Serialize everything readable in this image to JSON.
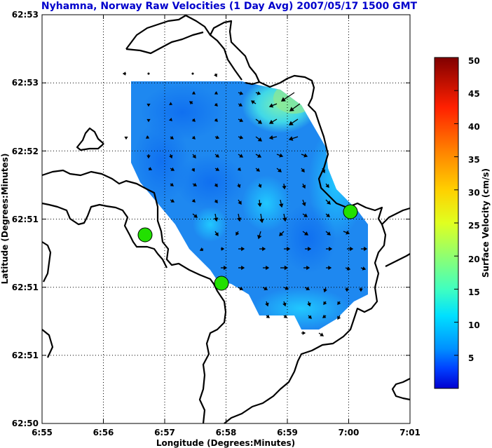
{
  "chart_data": {
    "type": "vector-field",
    "title": "Nyhamna, Norway Raw Velocities (1 Day Avg) 2007/05/17 1500 GMT",
    "xlabel": "Longitude (Degrees:Minutes)",
    "ylabel": "Latitude (Degrees:Minutes)",
    "x_ticks": [
      "6:55",
      "6:56",
      "6:57",
      "6:58",
      "6:59",
      "7:00",
      "7:01"
    ],
    "y_ticks": [
      "62:50",
      "62:51",
      "62:51",
      "62:51",
      "62:52",
      "62:53",
      "62:53"
    ],
    "grid": true,
    "colorbar": {
      "label": "Surface Velocity (cm/s)",
      "min": 0,
      "max": 50,
      "ticks": [
        "5",
        "10",
        "15",
        "20",
        "25",
        "30",
        "35",
        "40",
        "45",
        "50"
      ],
      "colormap": "jet"
    },
    "stations": [
      {
        "lon_min": 56.7,
        "lat_idx": 2.78
      },
      {
        "lon_min": 57.9,
        "lat_idx": 2.05
      },
      {
        "lon_min": 60.0,
        "lat_idx": 3.12
      }
    ],
    "station_color": "#22e000",
    "land_color": "#000000"
  }
}
